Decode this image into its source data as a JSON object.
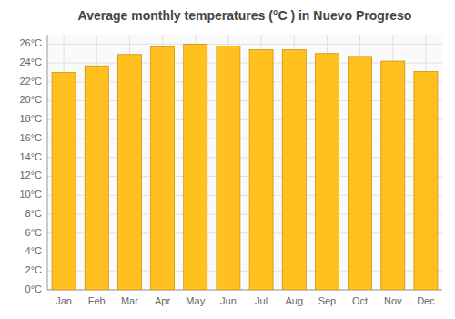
{
  "chart_data": {
    "type": "bar",
    "title": "Average monthly temperatures (°C ) in Nuevo Progreso",
    "categories": [
      "Jan",
      "Feb",
      "Mar",
      "Apr",
      "May",
      "Jun",
      "Jul",
      "Aug",
      "Sep",
      "Oct",
      "Nov",
      "Dec"
    ],
    "values": [
      23.0,
      23.7,
      24.9,
      25.7,
      26.0,
      25.8,
      25.4,
      25.4,
      25.0,
      24.7,
      24.2,
      23.1
    ],
    "color": "#FFC020",
    "ylim": [
      0,
      27
    ],
    "yticks": [
      {
        "value": 0,
        "label": "0°C"
      },
      {
        "value": 2,
        "label": "2°C"
      },
      {
        "value": 4,
        "label": "4°C"
      },
      {
        "value": 6,
        "label": "6°C"
      },
      {
        "value": 8,
        "label": "8°C"
      },
      {
        "value": 10,
        "label": "10°C"
      },
      {
        "value": 12,
        "label": "12°C"
      },
      {
        "value": 14,
        "label": "14°C"
      },
      {
        "value": 16,
        "label": "16°C"
      },
      {
        "value": 18,
        "label": "18°C"
      },
      {
        "value": 20,
        "label": "20°C"
      },
      {
        "value": 22,
        "label": "22°C"
      },
      {
        "value": 24,
        "label": "24°C"
      },
      {
        "value": 26,
        "label": "26°C"
      }
    ],
    "grid": true
  }
}
